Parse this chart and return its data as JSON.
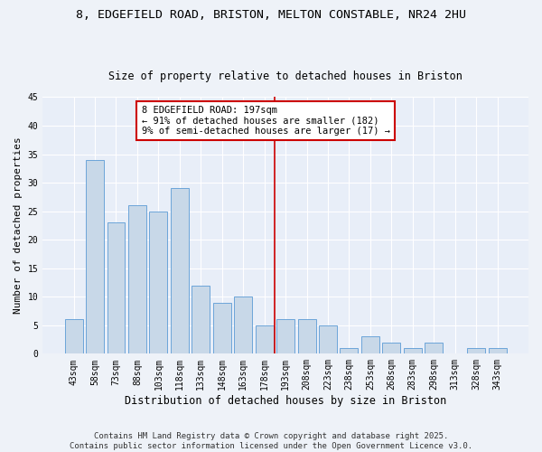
{
  "title_line1": "8, EDGEFIELD ROAD, BRISTON, MELTON CONSTABLE, NR24 2HU",
  "title_line2": "Size of property relative to detached houses in Briston",
  "xlabel": "Distribution of detached houses by size in Briston",
  "ylabel": "Number of detached properties",
  "categories": [
    "43sqm",
    "58sqm",
    "73sqm",
    "88sqm",
    "103sqm",
    "118sqm",
    "133sqm",
    "148sqm",
    "163sqm",
    "178sqm",
    "193sqm",
    "208sqm",
    "223sqm",
    "238sqm",
    "253sqm",
    "268sqm",
    "283sqm",
    "298sqm",
    "313sqm",
    "328sqm",
    "343sqm"
  ],
  "values": [
    6,
    34,
    23,
    26,
    25,
    29,
    12,
    9,
    10,
    5,
    6,
    6,
    5,
    1,
    3,
    2,
    1,
    2,
    0,
    1,
    1
  ],
  "bar_color": "#c8d8e8",
  "bar_edge_color": "#5b9bd5",
  "reference_line_x": 9.5,
  "reference_line_color": "#cc0000",
  "annotation_text": "8 EDGEFIELD ROAD: 197sqm\n← 91% of detached houses are smaller (182)\n9% of semi-detached houses are larger (17) →",
  "annotation_box_color": "#cc0000",
  "ylim": [
    0,
    45
  ],
  "yticks": [
    0,
    5,
    10,
    15,
    20,
    25,
    30,
    35,
    40,
    45
  ],
  "footnote": "Contains HM Land Registry data © Crown copyright and database right 2025.\nContains public sector information licensed under the Open Government Licence v3.0.",
  "fig_bg_color": "#eef2f8",
  "bg_color": "#e8eef8",
  "grid_color": "#ffffff",
  "title_fontsize": 9.5,
  "subtitle_fontsize": 8.5,
  "axis_label_fontsize": 8,
  "tick_fontsize": 7,
  "annotation_fontsize": 7.5,
  "footnote_fontsize": 6.5
}
